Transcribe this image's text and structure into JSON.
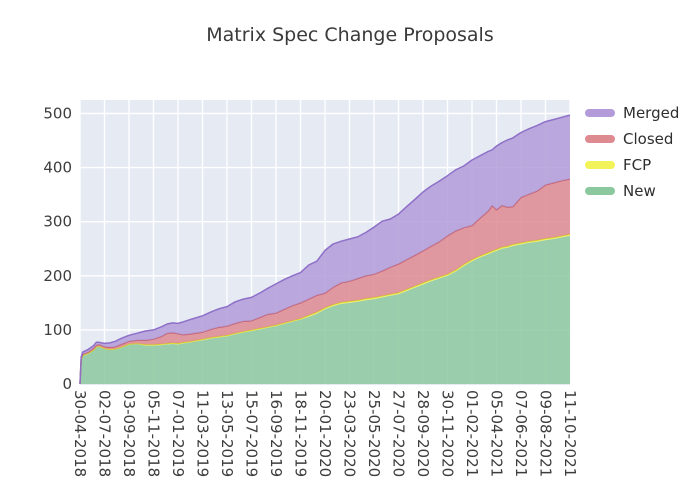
{
  "title": "Matrix Spec Change Proposals",
  "plot": {
    "bg": "#e5eaf3",
    "gridline": "#ffffff",
    "tick_color": "#3d3d3d",
    "title_color": "#3a3a3a"
  },
  "chart_data": {
    "type": "area",
    "stacked": true,
    "title": "Matrix Spec Change Proposals",
    "xlabel": "",
    "ylabel": "",
    "legend_position": "right",
    "grid": true,
    "x_unit": "days since 30-04-2018",
    "x_range": [
      0,
      1260
    ],
    "y_max": 525,
    "y_ticks": [
      0,
      100,
      200,
      300,
      400,
      500
    ],
    "x_ticks": [
      {
        "d": 0,
        "label": "30-04-2018"
      },
      {
        "d": 63,
        "label": "02-07-2018"
      },
      {
        "d": 126,
        "label": "03-09-2018"
      },
      {
        "d": 189,
        "label": "05-11-2018"
      },
      {
        "d": 252,
        "label": "07-01-2019"
      },
      {
        "d": 315,
        "label": "11-03-2019"
      },
      {
        "d": 378,
        "label": "13-05-2019"
      },
      {
        "d": 441,
        "label": "15-07-2019"
      },
      {
        "d": 504,
        "label": "16-09-2019"
      },
      {
        "d": 567,
        "label": "18-11-2019"
      },
      {
        "d": 630,
        "label": "20-01-2020"
      },
      {
        "d": 693,
        "label": "23-03-2020"
      },
      {
        "d": 756,
        "label": "25-05-2020"
      },
      {
        "d": 819,
        "label": "27-07-2020"
      },
      {
        "d": 882,
        "label": "28-09-2020"
      },
      {
        "d": 945,
        "label": "30-11-2020"
      },
      {
        "d": 1008,
        "label": "01-02-2021"
      },
      {
        "d": 1071,
        "label": "05-04-2021"
      },
      {
        "d": 1134,
        "label": "07-06-2021"
      },
      {
        "d": 1197,
        "label": "09-08-2021"
      },
      {
        "d": 1260,
        "label": "11-10-2021"
      }
    ],
    "series": [
      {
        "name": "New",
        "color": "#8cc89e",
        "edge": null
      },
      {
        "name": "FCP",
        "color": "#f2f259",
        "edge": "#d8d827"
      },
      {
        "name": "Closed",
        "color": "#de8a91",
        "edge": "#c6606d"
      },
      {
        "name": "Merged",
        "color": "#b29bd8",
        "edge": "#8e70c8"
      }
    ],
    "points_format": [
      "day",
      "New",
      "FCP",
      "Closed",
      "Merged"
    ],
    "points": [
      [
        0,
        0,
        0,
        0,
        0
      ],
      [
        3,
        44,
        1,
        2,
        3
      ],
      [
        7,
        52,
        1,
        2,
        4
      ],
      [
        21,
        56,
        1,
        2,
        5
      ],
      [
        35,
        62,
        1,
        3,
        5
      ],
      [
        42,
        68,
        1,
        3,
        5
      ],
      [
        49,
        69,
        1,
        3,
        4
      ],
      [
        56,
        67,
        1,
        3,
        5
      ],
      [
        63,
        65,
        1,
        3,
        6
      ],
      [
        77,
        63,
        1,
        4,
        8
      ],
      [
        91,
        64,
        1,
        4,
        10
      ],
      [
        105,
        67,
        1,
        5,
        11
      ],
      [
        126,
        73,
        1,
        5,
        11
      ],
      [
        147,
        74,
        1,
        6,
        13
      ],
      [
        168,
        71,
        2,
        8,
        17
      ],
      [
        189,
        71,
        2,
        10,
        17
      ],
      [
        210,
        72,
        2,
        14,
        18
      ],
      [
        224,
        73,
        2,
        19,
        17
      ],
      [
        238,
        74,
        2,
        19,
        18
      ],
      [
        252,
        73,
        2,
        18,
        19
      ],
      [
        266,
        75,
        2,
        14,
        24
      ],
      [
        287,
        77,
        2,
        14,
        27
      ],
      [
        315,
        81,
        2,
        13,
        30
      ],
      [
        336,
        84,
        2,
        15,
        32
      ],
      [
        357,
        86,
        2,
        17,
        34
      ],
      [
        378,
        88,
        2,
        17,
        36
      ],
      [
        399,
        92,
        2,
        18,
        40
      ],
      [
        420,
        95,
        2,
        19,
        41
      ],
      [
        441,
        98,
        2,
        17,
        43
      ],
      [
        462,
        101,
        2,
        20,
        45
      ],
      [
        483,
        104,
        2,
        23,
        48
      ],
      [
        504,
        107,
        2,
        22,
        54
      ],
      [
        525,
        111,
        2,
        25,
        55
      ],
      [
        546,
        115,
        2,
        28,
        55
      ],
      [
        567,
        119,
        2,
        29,
        56
      ],
      [
        588,
        124,
        3,
        30,
        63
      ],
      [
        609,
        130,
        3,
        31,
        63
      ],
      [
        630,
        138,
        3,
        27,
        79
      ],
      [
        651,
        144,
        3,
        32,
        80
      ],
      [
        672,
        148,
        3,
        36,
        77
      ],
      [
        693,
        150,
        3,
        37,
        78
      ],
      [
        714,
        152,
        3,
        40,
        77
      ],
      [
        735,
        155,
        3,
        42,
        80
      ],
      [
        756,
        157,
        3,
        43,
        87
      ],
      [
        777,
        160,
        3,
        46,
        92
      ],
      [
        798,
        163,
        3,
        50,
        89
      ],
      [
        819,
        166,
        3,
        53,
        92
      ],
      [
        840,
        172,
        3,
        55,
        98
      ],
      [
        861,
        178,
        3,
        57,
        103
      ],
      [
        882,
        184,
        3,
        59,
        109
      ],
      [
        903,
        190,
        3,
        62,
        111
      ],
      [
        924,
        195,
        3,
        65,
        112
      ],
      [
        945,
        200,
        3,
        71,
        111
      ],
      [
        966,
        208,
        3,
        72,
        113
      ],
      [
        987,
        218,
        3,
        68,
        114
      ],
      [
        1008,
        227,
        3,
        63,
        121
      ],
      [
        1029,
        234,
        3,
        70,
        115
      ],
      [
        1050,
        240,
        3,
        77,
        110
      ],
      [
        1060,
        243,
        3,
        84,
        103
      ],
      [
        1071,
        246,
        3,
        73,
        118
      ],
      [
        1085,
        250,
        3,
        77,
        116
      ],
      [
        1099,
        252,
        3,
        72,
        124
      ],
      [
        1113,
        255,
        3,
        70,
        127
      ],
      [
        1134,
        258,
        3,
        84,
        120
      ],
      [
        1155,
        261,
        3,
        87,
        121
      ],
      [
        1176,
        263,
        3,
        91,
        121
      ],
      [
        1197,
        266,
        3,
        99,
        117
      ],
      [
        1218,
        268,
        3,
        101,
        117
      ],
      [
        1239,
        271,
        3,
        102,
        117
      ],
      [
        1260,
        274,
        3,
        102,
        118
      ]
    ]
  }
}
